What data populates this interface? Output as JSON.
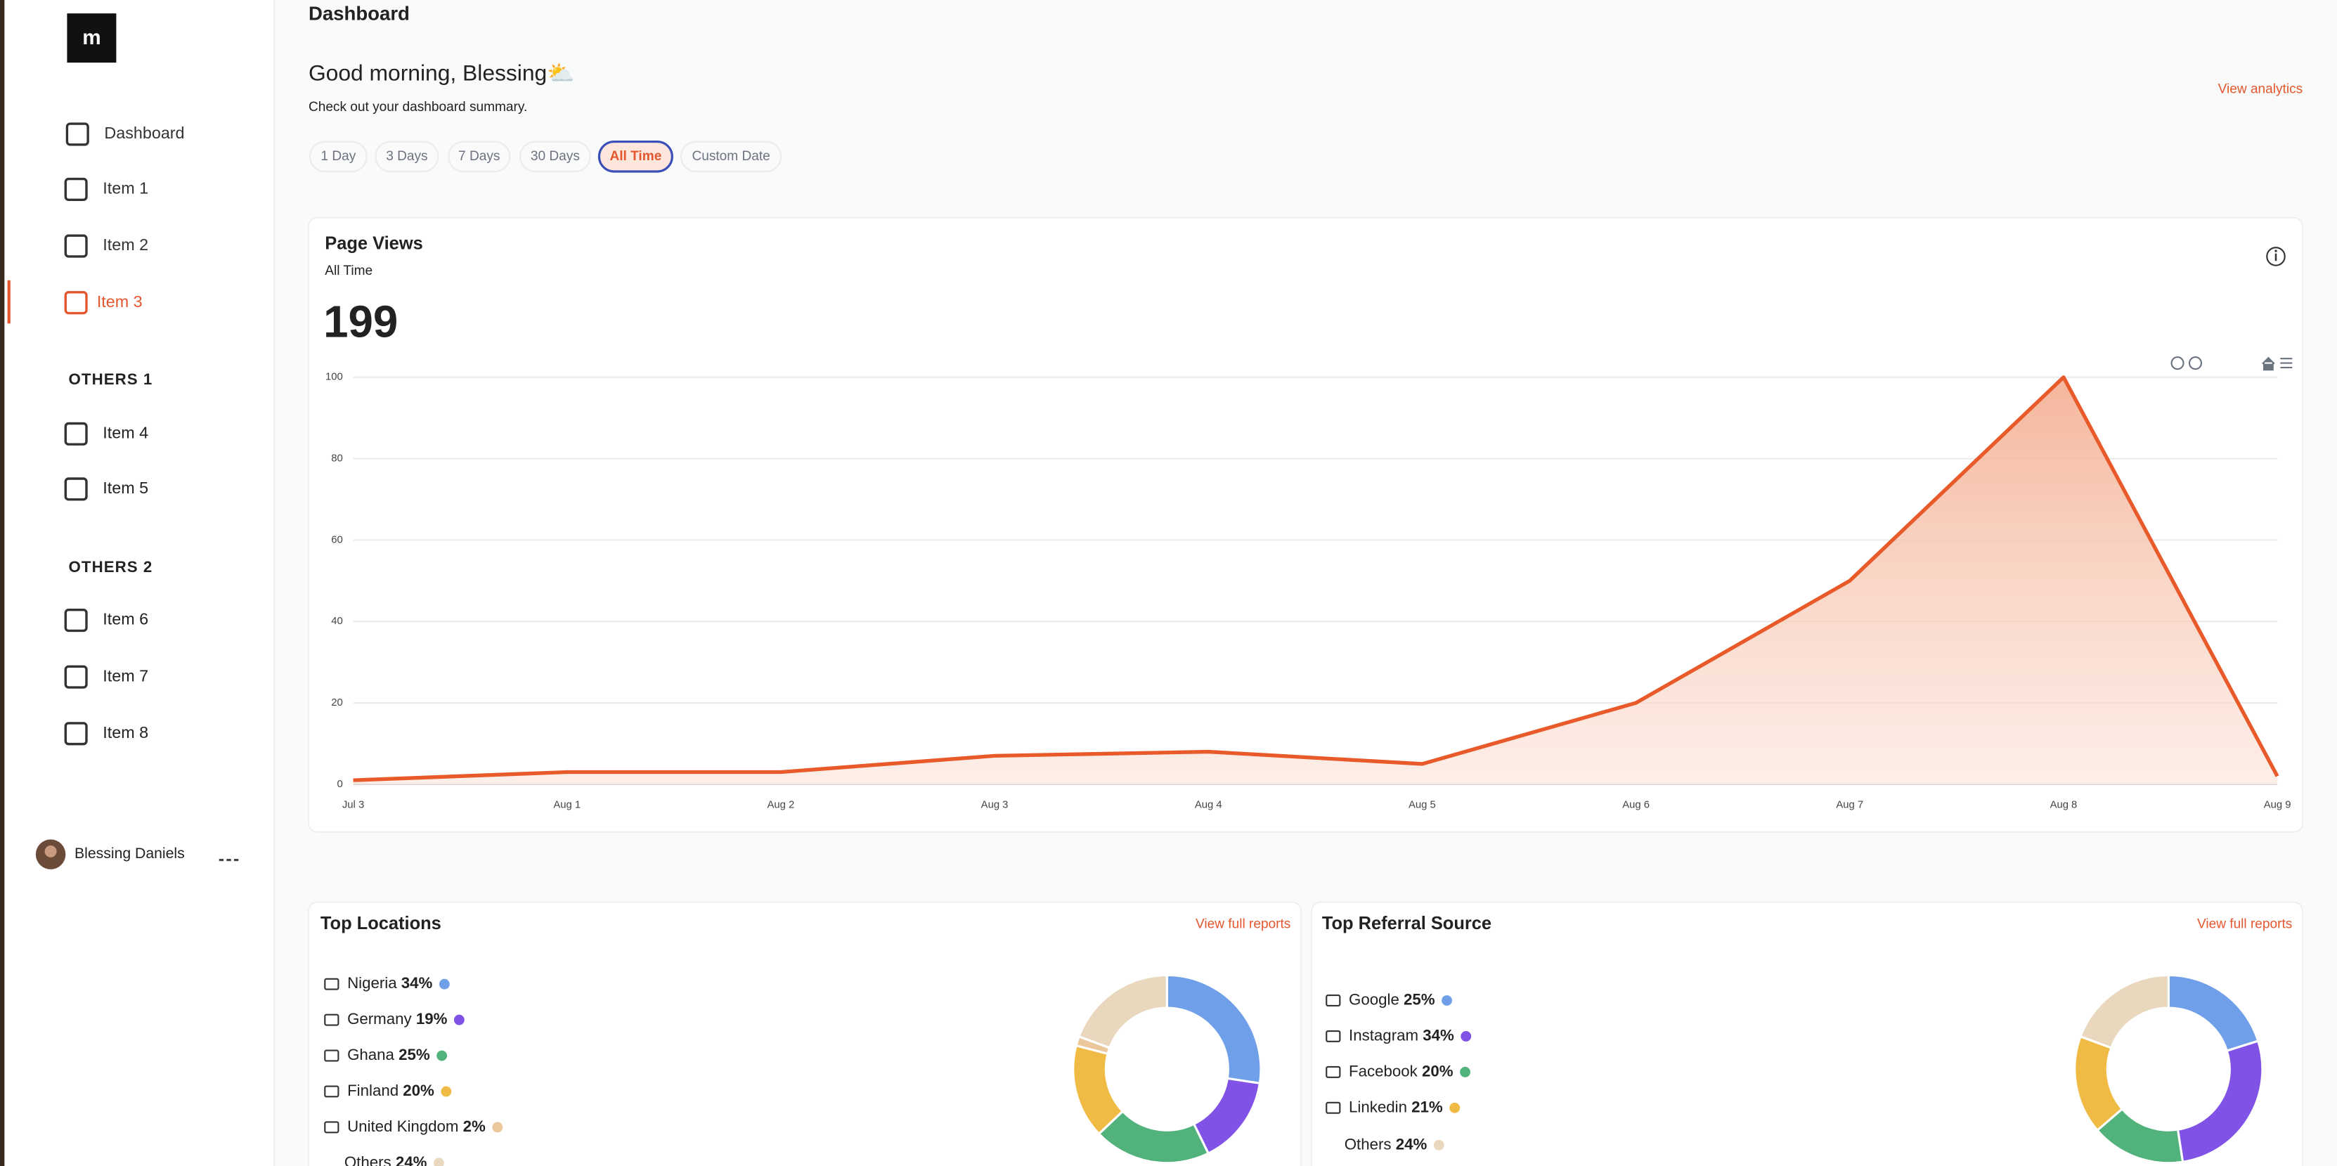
{
  "sidebar": {
    "items": [
      "Dashboard",
      "Item 1",
      "Item 2",
      "Item 3"
    ],
    "sections": [
      {
        "title": "OTHERS 1",
        "items": [
          "Item 4",
          "Item 5"
        ]
      },
      {
        "title": "OTHERS 2",
        "items": [
          "Item 6",
          "Item 7",
          "Item 8"
        ]
      }
    ],
    "user": "Blessing Daniels"
  },
  "header": {
    "title": "Dashboard",
    "greeting": "Good morning, Blessing⛅",
    "subtitle": "Check out your dashboard summary.",
    "link": "View analytics",
    "filters": [
      "1 Day",
      "3 Days",
      "7 Days",
      "30 Days",
      "All Time",
      "Custom Date"
    ]
  },
  "chart_data": [
    {
      "type": "line",
      "title": "Page Views",
      "subtitle": "All Time",
      "total": 199,
      "categories": [
        "Jul 3",
        "Aug 1",
        "Aug 2",
        "Aug 3",
        "Aug 4",
        "Aug 5",
        "Aug 6",
        "Aug 7",
        "Aug 8",
        "Aug 9"
      ],
      "values": [
        1,
        3,
        3,
        7,
        8,
        5,
        20,
        50,
        100,
        2
      ],
      "color": "#e85a2a",
      "ylim": [
        0,
        100
      ],
      "yticks": [
        0,
        20,
        40,
        60,
        80,
        100
      ],
      "grid": true
    },
    {
      "type": "pie",
      "title": "Top Locations",
      "link": "View full reports",
      "categories": [
        "Nigeria",
        "Germany",
        "Ghana",
        "Finland",
        "United Kingdom",
        "Others"
      ],
      "values": [
        34,
        19,
        25,
        20,
        2,
        24
      ],
      "value_labels": [
        "34%",
        "19%",
        "25%",
        "20%",
        "2%",
        "24%"
      ],
      "colors": [
        "#6f9fe8",
        "#8052e6",
        "#52b27c",
        "#f0bb44",
        "#ecc79c",
        "#e9d7be"
      ]
    },
    {
      "type": "pie",
      "title": "Top Referral Source",
      "link": "View full reports",
      "categories": [
        "Google",
        "Instagram",
        "Facebook",
        "Linkedin",
        "Others"
      ],
      "values": [
        25,
        34,
        20,
        21,
        24
      ],
      "value_labels": [
        "25%",
        "34%",
        "20%",
        "21%",
        "24%"
      ],
      "colors": [
        "#6f9fe8",
        "#8052e6",
        "#52b27c",
        "#f0bb44",
        "#e9d7be"
      ]
    }
  ]
}
